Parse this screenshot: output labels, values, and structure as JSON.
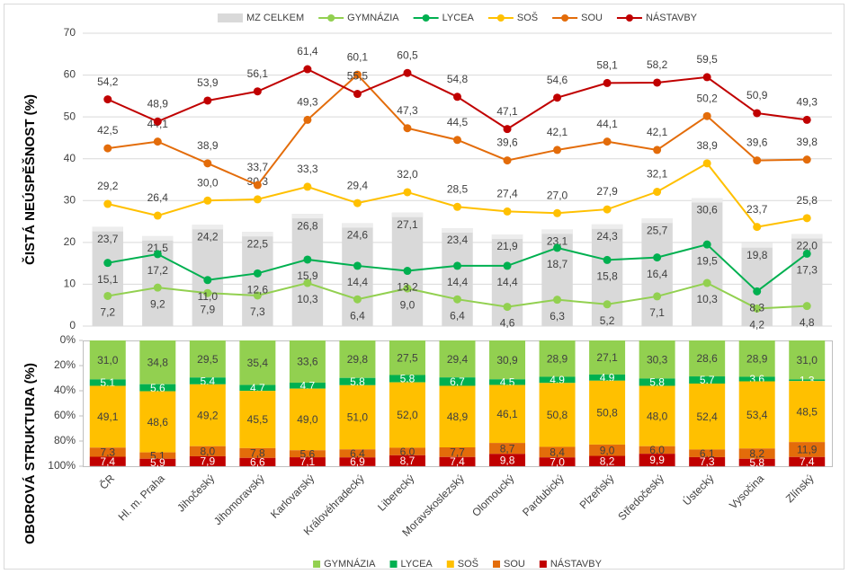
{
  "chart_data": [
    {
      "type": "combo",
      "y_label": "ČISTÁ NEÚSPĚŠNOST (%)",
      "ylim": [
        0,
        70
      ],
      "yticks": [
        0,
        10,
        20,
        30,
        40,
        50,
        60,
        70
      ],
      "grid": true,
      "legend": "top",
      "series": [
        {
          "name": "MZ CELKEM",
          "type": "bar",
          "color": "#d9d9d9",
          "values": [
            23.7,
            21.5,
            24.2,
            22.5,
            26.8,
            24.6,
            27.1,
            23.4,
            21.9,
            23.1,
            24.3,
            25.7,
            30.6,
            19.8,
            22.0
          ],
          "value_labels": [
            "23,7",
            "21,5",
            "24,2",
            "22,5",
            "26,8",
            "24,6",
            "27,1",
            "23,4",
            "21,9",
            "23,1",
            "24,3",
            "25,7",
            "30,6",
            "19,8",
            "22,0"
          ]
        },
        {
          "name": "GYMNÁZIA",
          "type": "line",
          "color": "#92d050",
          "values": [
            7.2,
            9.2,
            7.9,
            7.3,
            10.3,
            6.4,
            9.0,
            6.4,
            4.6,
            6.3,
            5.2,
            7.1,
            10.3,
            4.2,
            4.8
          ],
          "value_labels": [
            "7,2",
            "9,2",
            "7,9",
            "7,3",
            "10,3",
            "6,4",
            "9,0",
            "6,4",
            "4,6",
            "6,3",
            "5,2",
            "7,1",
            "10,3",
            "4,2",
            "4,8"
          ]
        },
        {
          "name": "LYCEA",
          "type": "line",
          "color": "#00b050",
          "values": [
            15.1,
            17.2,
            11.0,
            12.6,
            15.9,
            14.4,
            13.2,
            14.4,
            14.4,
            18.7,
            15.8,
            16.4,
            19.5,
            8.3,
            17.3
          ],
          "value_labels": [
            "15,1",
            "17,2",
            "11,0",
            "12,6",
            "15,9",
            "14,4",
            "13,2",
            "14,4",
            "14,4",
            "18,7",
            "15,8",
            "16,4",
            "19,5",
            "8,3",
            "17,3"
          ]
        },
        {
          "name": "SOŠ",
          "type": "line",
          "color": "#ffc000",
          "values": [
            29.2,
            26.4,
            30.0,
            30.3,
            33.3,
            29.4,
            32.0,
            28.5,
            27.4,
            27.0,
            27.9,
            32.1,
            38.9,
            23.7,
            25.8
          ],
          "value_labels": [
            "29,2",
            "26,4",
            "30,0",
            "30,3",
            "33,3",
            "29,4",
            "32,0",
            "28,5",
            "27,4",
            "27,0",
            "27,9",
            "32,1",
            "38,9",
            "23,7",
            "25,8"
          ]
        },
        {
          "name": "SOU",
          "type": "line",
          "color": "#e36c0a",
          "values": [
            42.5,
            44.1,
            38.9,
            33.7,
            49.3,
            60.1,
            47.3,
            44.5,
            39.6,
            42.1,
            44.1,
            42.1,
            50.2,
            39.6,
            39.8
          ],
          "value_labels": [
            "42,5",
            "44,1",
            "38,9",
            "33,7",
            "49,3",
            "60,1",
            "47,3",
            "44,5",
            "39,6",
            "42,1",
            "44,1",
            "42,1",
            "50,2",
            "39,6",
            "39,8"
          ]
        },
        {
          "name": "NÁSTAVBY",
          "type": "line",
          "color": "#c00000",
          "values": [
            54.2,
            48.9,
            53.9,
            56.1,
            61.4,
            55.5,
            60.5,
            54.8,
            47.1,
            54.6,
            58.1,
            58.2,
            59.5,
            50.9,
            49.3
          ],
          "value_labels": [
            "54,2",
            "48,9",
            "53,9",
            "56,1",
            "61,4",
            "55,5",
            "60,5",
            "54,8",
            "47,1",
            "54,6",
            "58,1",
            "58,2",
            "59,5",
            "50,9",
            "49,3"
          ]
        }
      ]
    },
    {
      "type": "stacked_bar",
      "y_label": "OBOROVÁ STRUKTURA (%)",
      "ylim": [
        0,
        100
      ],
      "y_inverted": true,
      "legend": "bottom",
      "yticks": [
        {
          "value": 0,
          "label": "0%"
        },
        {
          "value": 20,
          "label": "20%"
        },
        {
          "value": 40,
          "label": "40%"
        },
        {
          "value": 60,
          "label": "60%"
        },
        {
          "value": 80,
          "label": "80%"
        },
        {
          "value": 100,
          "label": "100%"
        }
      ],
      "categories": [
        "ČR",
        "Hl. m. Praha",
        "Jihočeský",
        "Jihomoravský",
        "Karlovarský",
        "Královéhradecký",
        "Liberecký",
        "Moravskoslezský",
        "Olomoucký",
        "Pardubický",
        "Plzeňský",
        "Středočeský",
        "Ústecký",
        "Vysočina",
        "Zlínský"
      ],
      "series": [
        {
          "name": "GYMNÁZIA",
          "color": "#92d050",
          "values": [
            31.0,
            34.8,
            29.5,
            35.4,
            33.6,
            29.8,
            27.5,
            29.4,
            30.9,
            28.9,
            27.1,
            30.3,
            28.6,
            28.9,
            31.0
          ],
          "value_labels": [
            "31,0",
            "34,8",
            "29,5",
            "35,4",
            "33,6",
            "29,8",
            "27,5",
            "29,4",
            "30,9",
            "28,9",
            "27,1",
            "30,3",
            "28,6",
            "28,9",
            "31,0"
          ]
        },
        {
          "name": "LYCEA",
          "color": "#00b050",
          "values": [
            5.1,
            5.6,
            5.4,
            4.7,
            4.7,
            5.8,
            5.8,
            6.7,
            4.5,
            4.9,
            4.9,
            5.8,
            5.7,
            3.6,
            1.3
          ],
          "value_labels": [
            "5,1",
            "5,6",
            "5,4",
            "4,7",
            "4,7",
            "5,8",
            "5,8",
            "6,7",
            "4,5",
            "4,9",
            "4,9",
            "5,8",
            "5,7",
            "3,6",
            "1,3"
          ]
        },
        {
          "name": "SOŠ",
          "color": "#ffc000",
          "values": [
            49.1,
            48.6,
            49.2,
            45.5,
            49.0,
            51.0,
            52.0,
            48.9,
            46.1,
            50.8,
            50.8,
            48.0,
            52.4,
            53.4,
            48.5
          ],
          "value_labels": [
            "49,1",
            "48,6",
            "49,2",
            "45,5",
            "49,0",
            "51,0",
            "52,0",
            "48,9",
            "46,1",
            "50,8",
            "50,8",
            "48,0",
            "52,4",
            "53,4",
            "48,5"
          ]
        },
        {
          "name": "SOU",
          "color": "#e36c0a",
          "values": [
            7.3,
            5.1,
            8.0,
            7.8,
            5.6,
            6.4,
            6.0,
            7.7,
            8.7,
            8.4,
            9.0,
            6.0,
            6.1,
            8.2,
            11.9
          ],
          "value_labels": [
            "7,3",
            "5,1",
            "8,0",
            "7,8",
            "5,6",
            "6,4",
            "6,0",
            "7,7",
            "8,7",
            "8,4",
            "9,0",
            "6,0",
            "6,1",
            "8,2",
            "11,9"
          ]
        },
        {
          "name": "NÁSTAVBY",
          "color": "#c00000",
          "values": [
            7.4,
            5.9,
            7.9,
            6.6,
            7.1,
            6.9,
            8.7,
            7.4,
            9.8,
            7.0,
            8.2,
            9.9,
            7.3,
            5.8,
            7.4
          ],
          "value_labels": [
            "7,4",
            "5,9",
            "7,9",
            "6,6",
            "7,1",
            "6,9",
            "8,7",
            "7,4",
            "9,8",
            "7,0",
            "8,2",
            "9,9",
            "7,3",
            "5,8",
            "7,4"
          ]
        }
      ]
    }
  ]
}
